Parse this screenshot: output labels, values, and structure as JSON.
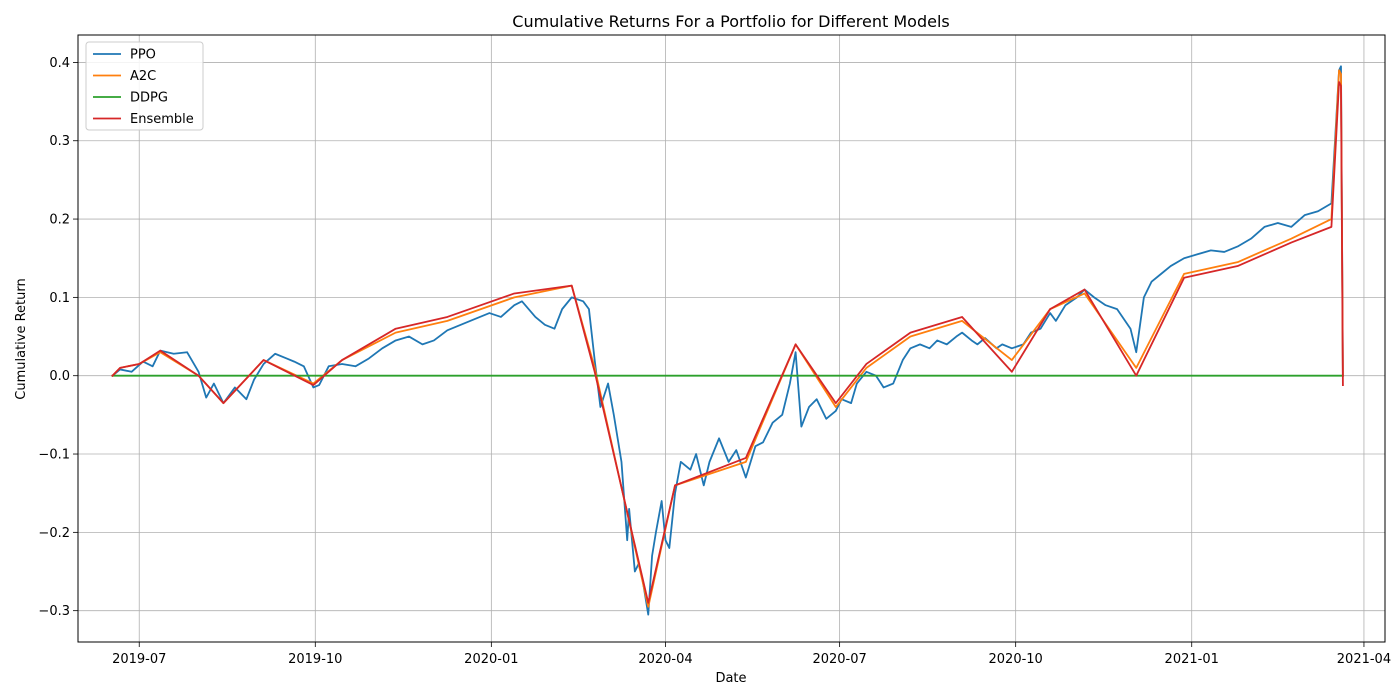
{
  "chart_data": {
    "type": "line",
    "title": "Cumulative Returns For a Portfolio for Different Models",
    "xlabel": "Date",
    "ylabel": "Cumulative Return",
    "xlim": [
      "2019-05-30",
      "2021-04-12"
    ],
    "ylim": [
      -0.34,
      0.435
    ],
    "grid": true,
    "legend_position": "top-left",
    "x_ticks": [
      {
        "date": "2019-07-01",
        "label": "2019-07"
      },
      {
        "date": "2019-10-01",
        "label": "2019-10"
      },
      {
        "date": "2020-01-01",
        "label": "2020-01"
      },
      {
        "date": "2020-04-01",
        "label": "2020-04"
      },
      {
        "date": "2020-07-01",
        "label": "2020-07"
      },
      {
        "date": "2020-10-01",
        "label": "2020-10"
      },
      {
        "date": "2021-01-01",
        "label": "2021-01"
      },
      {
        "date": "2021-04-01",
        "label": "2021-04"
      }
    ],
    "y_ticks": [
      {
        "value": -0.3,
        "label": "−0.3"
      },
      {
        "value": -0.2,
        "label": "−0.2"
      },
      {
        "value": -0.1,
        "label": "−0.1"
      },
      {
        "value": 0.0,
        "label": "0.0"
      },
      {
        "value": 0.1,
        "label": "0.1"
      },
      {
        "value": 0.2,
        "label": "0.2"
      },
      {
        "value": 0.3,
        "label": "0.3"
      },
      {
        "value": 0.4,
        "label": "0.4"
      }
    ],
    "series": [
      {
        "name": "PPO",
        "color": "#1f77b4",
        "points": [
          [
            "2019-06-17",
            0.0
          ],
          [
            "2019-06-21",
            0.008
          ],
          [
            "2019-06-27",
            0.005
          ],
          [
            "2019-07-03",
            0.018
          ],
          [
            "2019-07-08",
            0.012
          ],
          [
            "2019-07-12",
            0.032
          ],
          [
            "2019-07-19",
            0.028
          ],
          [
            "2019-07-26",
            0.03
          ],
          [
            "2019-08-01",
            0.005
          ],
          [
            "2019-08-05",
            -0.028
          ],
          [
            "2019-08-09",
            -0.01
          ],
          [
            "2019-08-14",
            -0.035
          ],
          [
            "2019-08-20",
            -0.015
          ],
          [
            "2019-08-26",
            -0.03
          ],
          [
            "2019-08-30",
            -0.005
          ],
          [
            "2019-09-04",
            0.015
          ],
          [
            "2019-09-10",
            0.028
          ],
          [
            "2019-09-16",
            0.022
          ],
          [
            "2019-09-20",
            0.018
          ],
          [
            "2019-09-25",
            0.012
          ],
          [
            "2019-09-30",
            -0.015
          ],
          [
            "2019-10-03",
            -0.012
          ],
          [
            "2019-10-08",
            0.012
          ],
          [
            "2019-10-15",
            0.015
          ],
          [
            "2019-10-22",
            0.012
          ],
          [
            "2019-10-29",
            0.022
          ],
          [
            "2019-11-05",
            0.035
          ],
          [
            "2019-11-12",
            0.045
          ],
          [
            "2019-11-19",
            0.05
          ],
          [
            "2019-11-26",
            0.04
          ],
          [
            "2019-12-02",
            0.045
          ],
          [
            "2019-12-09",
            0.058
          ],
          [
            "2019-12-16",
            0.065
          ],
          [
            "2019-12-23",
            0.072
          ],
          [
            "2019-12-31",
            0.08
          ],
          [
            "2020-01-06",
            0.075
          ],
          [
            "2020-01-13",
            0.09
          ],
          [
            "2020-01-17",
            0.095
          ],
          [
            "2020-01-24",
            0.075
          ],
          [
            "2020-01-29",
            0.065
          ],
          [
            "2020-02-03",
            0.06
          ],
          [
            "2020-02-07",
            0.085
          ],
          [
            "2020-02-12",
            0.1
          ],
          [
            "2020-02-18",
            0.095
          ],
          [
            "2020-02-21",
            0.085
          ],
          [
            "2020-02-24",
            0.02
          ],
          [
            "2020-02-27",
            -0.04
          ],
          [
            "2020-03-02",
            -0.01
          ],
          [
            "2020-03-05",
            -0.05
          ],
          [
            "2020-03-09",
            -0.11
          ],
          [
            "2020-03-12",
            -0.21
          ],
          [
            "2020-03-13",
            -0.17
          ],
          [
            "2020-03-16",
            -0.25
          ],
          [
            "2020-03-18",
            -0.24
          ],
          [
            "2020-03-20",
            -0.26
          ],
          [
            "2020-03-23",
            -0.305
          ],
          [
            "2020-03-25",
            -0.23
          ],
          [
            "2020-03-27",
            -0.2
          ],
          [
            "2020-03-30",
            -0.16
          ],
          [
            "2020-04-01",
            -0.21
          ],
          [
            "2020-04-03",
            -0.22
          ],
          [
            "2020-04-06",
            -0.15
          ],
          [
            "2020-04-09",
            -0.11
          ],
          [
            "2020-04-14",
            -0.12
          ],
          [
            "2020-04-17",
            -0.1
          ],
          [
            "2020-04-21",
            -0.14
          ],
          [
            "2020-04-24",
            -0.11
          ],
          [
            "2020-04-29",
            -0.08
          ],
          [
            "2020-05-04",
            -0.11
          ],
          [
            "2020-05-08",
            -0.095
          ],
          [
            "2020-05-13",
            -0.13
          ],
          [
            "2020-05-18",
            -0.09
          ],
          [
            "2020-05-22",
            -0.085
          ],
          [
            "2020-05-27",
            -0.06
          ],
          [
            "2020-06-01",
            -0.05
          ],
          [
            "2020-06-05",
            -0.01
          ],
          [
            "2020-06-08",
            0.03
          ],
          [
            "2020-06-11",
            -0.065
          ],
          [
            "2020-06-15",
            -0.04
          ],
          [
            "2020-06-19",
            -0.03
          ],
          [
            "2020-06-24",
            -0.055
          ],
          [
            "2020-06-29",
            -0.045
          ],
          [
            "2020-07-02",
            -0.03
          ],
          [
            "2020-07-07",
            -0.035
          ],
          [
            "2020-07-10",
            -0.01
          ],
          [
            "2020-07-15",
            0.005
          ],
          [
            "2020-07-20",
            0.0
          ],
          [
            "2020-07-24",
            -0.015
          ],
          [
            "2020-07-29",
            -0.01
          ],
          [
            "2020-08-03",
            0.02
          ],
          [
            "2020-08-07",
            0.035
          ],
          [
            "2020-08-12",
            0.04
          ],
          [
            "2020-08-17",
            0.035
          ],
          [
            "2020-08-21",
            0.045
          ],
          [
            "2020-08-26",
            0.04
          ],
          [
            "2020-08-31",
            0.05
          ],
          [
            "2020-09-03",
            0.055
          ],
          [
            "2020-09-08",
            0.045
          ],
          [
            "2020-09-11",
            0.04
          ],
          [
            "2020-09-15",
            0.048
          ],
          [
            "2020-09-21",
            0.035
          ],
          [
            "2020-09-24",
            0.04
          ],
          [
            "2020-09-29",
            0.035
          ],
          [
            "2020-10-05",
            0.04
          ],
          [
            "2020-10-09",
            0.055
          ],
          [
            "2020-10-14",
            0.06
          ],
          [
            "2020-10-19",
            0.08
          ],
          [
            "2020-10-22",
            0.07
          ],
          [
            "2020-10-27",
            0.09
          ],
          [
            "2020-11-02",
            0.1
          ],
          [
            "2020-11-06",
            0.11
          ],
          [
            "2020-11-11",
            0.1
          ],
          [
            "2020-11-17",
            0.09
          ],
          [
            "2020-11-23",
            0.085
          ],
          [
            "2020-11-30",
            0.06
          ],
          [
            "2020-12-03",
            0.03
          ],
          [
            "2020-12-07",
            0.1
          ],
          [
            "2020-12-11",
            0.12
          ],
          [
            "2020-12-16",
            0.13
          ],
          [
            "2020-12-21",
            0.14
          ],
          [
            "2020-12-28",
            0.15
          ],
          [
            "2021-01-04",
            0.155
          ],
          [
            "2021-01-11",
            0.16
          ],
          [
            "2021-01-18",
            0.158
          ],
          [
            "2021-01-25",
            0.165
          ],
          [
            "2021-02-01",
            0.175
          ],
          [
            "2021-02-08",
            0.19
          ],
          [
            "2021-02-15",
            0.195
          ],
          [
            "2021-02-22",
            0.19
          ],
          [
            "2021-03-01",
            0.205
          ],
          [
            "2021-03-08",
            0.21
          ],
          [
            "2021-03-15",
            0.22
          ],
          [
            "2021-03-19",
            0.39
          ],
          [
            "2021-03-20",
            0.395
          ],
          [
            "2021-03-21",
            0.0
          ]
        ]
      },
      {
        "name": "A2C",
        "color": "#ff7f0e",
        "points": [
          [
            "2019-06-17",
            0.0
          ],
          [
            "2019-06-21",
            0.01
          ],
          [
            "2019-07-01",
            0.015
          ],
          [
            "2019-07-12",
            0.03
          ],
          [
            "2019-08-01",
            0.0
          ],
          [
            "2019-08-14",
            -0.035
          ],
          [
            "2019-09-04",
            0.02
          ],
          [
            "2019-09-30",
            -0.01
          ],
          [
            "2019-10-15",
            0.02
          ],
          [
            "2019-11-12",
            0.055
          ],
          [
            "2019-12-09",
            0.07
          ],
          [
            "2020-01-13",
            0.1
          ],
          [
            "2020-02-12",
            0.115
          ],
          [
            "2020-02-24",
            0.01
          ],
          [
            "2020-03-23",
            -0.295
          ],
          [
            "2020-04-06",
            -0.14
          ],
          [
            "2020-05-13",
            -0.11
          ],
          [
            "2020-06-08",
            0.04
          ],
          [
            "2020-06-29",
            -0.04
          ],
          [
            "2020-07-15",
            0.01
          ],
          [
            "2020-08-07",
            0.05
          ],
          [
            "2020-09-03",
            0.07
          ],
          [
            "2020-09-29",
            0.02
          ],
          [
            "2020-10-19",
            0.085
          ],
          [
            "2020-11-06",
            0.105
          ],
          [
            "2020-12-03",
            0.01
          ],
          [
            "2020-12-28",
            0.13
          ],
          [
            "2021-01-25",
            0.145
          ],
          [
            "2021-02-22",
            0.175
          ],
          [
            "2021-03-15",
            0.2
          ],
          [
            "2021-03-19",
            0.39
          ],
          [
            "2021-03-20",
            0.385
          ],
          [
            "2021-03-21",
            0.0
          ]
        ]
      },
      {
        "name": "DDPG",
        "color": "#2ca02c",
        "points": [
          [
            "2019-06-17",
            0.0
          ],
          [
            "2021-03-21",
            0.0
          ]
        ]
      },
      {
        "name": "Ensemble",
        "color": "#d62728",
        "points": [
          [
            "2019-06-17",
            0.0
          ],
          [
            "2019-06-21",
            0.01
          ],
          [
            "2019-07-01",
            0.015
          ],
          [
            "2019-07-12",
            0.032
          ],
          [
            "2019-08-01",
            0.0
          ],
          [
            "2019-08-14",
            -0.035
          ],
          [
            "2019-09-04",
            0.02
          ],
          [
            "2019-09-30",
            -0.012
          ],
          [
            "2019-10-15",
            0.02
          ],
          [
            "2019-11-12",
            0.06
          ],
          [
            "2019-12-09",
            0.075
          ],
          [
            "2020-01-13",
            0.105
          ],
          [
            "2020-02-12",
            0.115
          ],
          [
            "2020-02-24",
            0.005
          ],
          [
            "2020-03-23",
            -0.29
          ],
          [
            "2020-04-06",
            -0.14
          ],
          [
            "2020-05-13",
            -0.105
          ],
          [
            "2020-06-08",
            0.04
          ],
          [
            "2020-06-29",
            -0.035
          ],
          [
            "2020-07-15",
            0.015
          ],
          [
            "2020-08-07",
            0.055
          ],
          [
            "2020-09-03",
            0.075
          ],
          [
            "2020-09-29",
            0.005
          ],
          [
            "2020-10-19",
            0.085
          ],
          [
            "2020-11-06",
            0.11
          ],
          [
            "2020-12-03",
            0.0
          ],
          [
            "2020-12-28",
            0.125
          ],
          [
            "2021-01-25",
            0.14
          ],
          [
            "2021-02-22",
            0.17
          ],
          [
            "2021-03-15",
            0.19
          ],
          [
            "2021-03-19",
            0.375
          ],
          [
            "2021-03-20",
            0.37
          ],
          [
            "2021-03-21",
            -0.012
          ]
        ]
      }
    ]
  }
}
